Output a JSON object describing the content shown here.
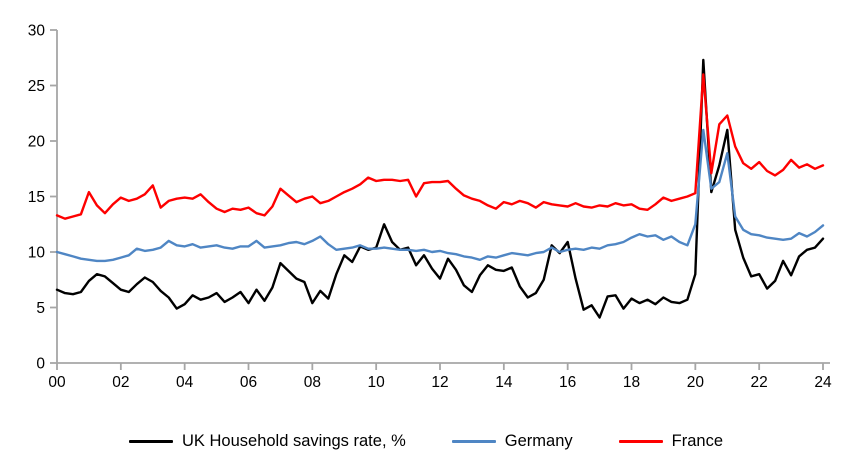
{
  "chart_data": {
    "type": "line",
    "title": "",
    "xlabel": "",
    "ylabel": "",
    "x_start_year": 2000,
    "points_per_year": 4,
    "x_tick_labels": [
      "00",
      "02",
      "04",
      "06",
      "08",
      "10",
      "12",
      "14",
      "16",
      "18",
      "20",
      "22",
      "24"
    ],
    "y_ticks": [
      0,
      5,
      10,
      15,
      20,
      25,
      30
    ],
    "ylim": [
      0,
      30
    ],
    "grid": false,
    "legend_position": "bottom",
    "axis_color": "#A6A6A6",
    "label_color": "#000000",
    "series": [
      {
        "name": "UK Household savings rate, %",
        "color": "#000000",
        "values": [
          6.6,
          6.3,
          6.2,
          6.4,
          7.4,
          8.0,
          7.8,
          7.2,
          6.6,
          6.4,
          7.1,
          7.7,
          7.3,
          6.5,
          5.9,
          4.9,
          5.3,
          6.1,
          5.7,
          5.9,
          6.3,
          5.5,
          5.9,
          6.4,
          5.4,
          6.6,
          5.6,
          6.8,
          9.0,
          8.3,
          7.6,
          7.3,
          5.4,
          6.5,
          5.8,
          8.0,
          9.7,
          9.1,
          10.5,
          10.2,
          10.4,
          12.5,
          10.9,
          10.2,
          10.4,
          8.8,
          9.7,
          8.5,
          7.6,
          9.4,
          8.4,
          7.0,
          6.4,
          7.9,
          8.8,
          8.4,
          8.3,
          8.6,
          6.9,
          5.9,
          6.3,
          7.5,
          10.6,
          9.9,
          10.9,
          7.6,
          4.8,
          5.2,
          4.1,
          6.0,
          6.1,
          4.9,
          5.8,
          5.4,
          5.7,
          5.3,
          5.9,
          5.5,
          5.4,
          5.7,
          8.0,
          27.3,
          15.4,
          17.8,
          21.0,
          12.0,
          9.5,
          7.8,
          8.0,
          6.7,
          7.4,
          9.2,
          7.9,
          9.6,
          10.2,
          10.4,
          11.2
        ]
      },
      {
        "name": "Germany",
        "color": "#4F86C4",
        "values": [
          10.0,
          9.8,
          9.6,
          9.4,
          9.3,
          9.2,
          9.2,
          9.3,
          9.5,
          9.7,
          10.3,
          10.1,
          10.2,
          10.4,
          11.0,
          10.6,
          10.5,
          10.7,
          10.4,
          10.5,
          10.6,
          10.4,
          10.3,
          10.5,
          10.5,
          11.0,
          10.4,
          10.5,
          10.6,
          10.8,
          10.9,
          10.7,
          11.0,
          11.4,
          10.7,
          10.2,
          10.3,
          10.4,
          10.6,
          10.3,
          10.3,
          10.4,
          10.3,
          10.2,
          10.2,
          10.1,
          10.2,
          10.0,
          10.1,
          9.9,
          9.8,
          9.6,
          9.5,
          9.3,
          9.6,
          9.5,
          9.7,
          9.9,
          9.8,
          9.7,
          9.9,
          10.0,
          10.4,
          10.0,
          10.2,
          10.3,
          10.2,
          10.4,
          10.3,
          10.6,
          10.7,
          10.9,
          11.3,
          11.6,
          11.4,
          11.5,
          11.1,
          11.4,
          10.9,
          10.6,
          12.5,
          21.0,
          15.7,
          16.3,
          18.9,
          13.2,
          12.0,
          11.6,
          11.5,
          11.3,
          11.2,
          11.1,
          11.2,
          11.7,
          11.4,
          11.8,
          12.4
        ]
      },
      {
        "name": "France",
        "color": "#FE0000",
        "values": [
          13.3,
          13.0,
          13.2,
          13.4,
          15.4,
          14.2,
          13.5,
          14.3,
          14.9,
          14.6,
          14.8,
          15.2,
          16.0,
          14.0,
          14.6,
          14.8,
          14.9,
          14.8,
          15.2,
          14.5,
          13.9,
          13.6,
          13.9,
          13.8,
          14.0,
          13.5,
          13.3,
          14.1,
          15.7,
          15.1,
          14.5,
          14.8,
          15.0,
          14.4,
          14.6,
          15.0,
          15.4,
          15.7,
          16.1,
          16.7,
          16.4,
          16.5,
          16.5,
          16.4,
          16.5,
          15.0,
          16.2,
          16.3,
          16.3,
          16.4,
          15.7,
          15.1,
          14.8,
          14.6,
          14.2,
          13.9,
          14.5,
          14.3,
          14.6,
          14.4,
          14.0,
          14.5,
          14.3,
          14.2,
          14.1,
          14.4,
          14.1,
          14.0,
          14.2,
          14.1,
          14.4,
          14.2,
          14.3,
          13.9,
          13.8,
          14.3,
          14.9,
          14.6,
          14.8,
          15.0,
          15.3,
          26.0,
          17.1,
          21.5,
          22.3,
          19.5,
          18.0,
          17.5,
          18.1,
          17.3,
          16.9,
          17.4,
          18.3,
          17.6,
          17.9,
          17.5,
          17.8
        ]
      }
    ]
  }
}
